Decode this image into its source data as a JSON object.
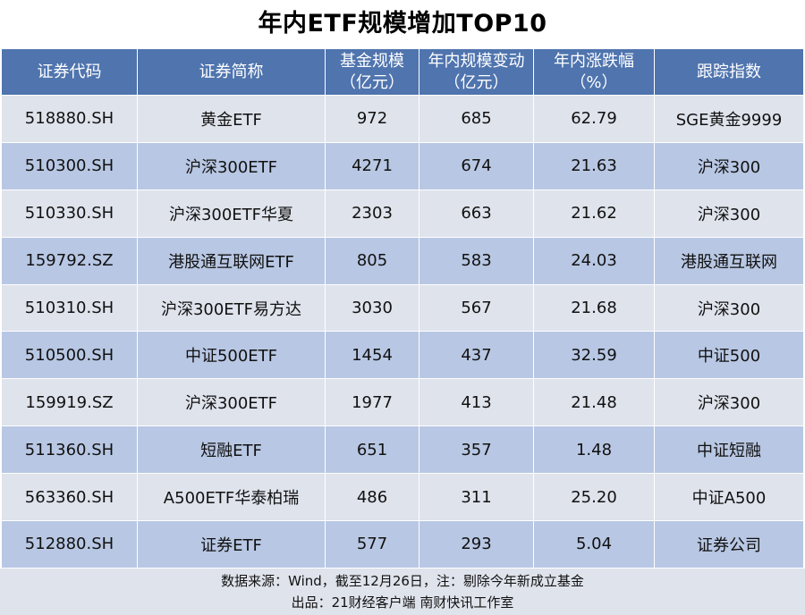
{
  "chart_data": {
    "type": "table",
    "title": "年内ETF规模增加TOP10",
    "columns": [
      {
        "line1": "证券代码",
        "line2": ""
      },
      {
        "line1": "证券简称",
        "line2": ""
      },
      {
        "line1": "基金规模",
        "line2": "（亿元）"
      },
      {
        "line1": "年内规模变动",
        "line2": "（亿元）"
      },
      {
        "line1": "年内涨跌幅",
        "line2": "（%）"
      },
      {
        "line1": "跟踪指数",
        "line2": ""
      }
    ],
    "rows": [
      [
        "518880.SH",
        "黄金ETF",
        "972",
        "685",
        "62.79",
        "SGE黄金9999"
      ],
      [
        "510300.SH",
        "沪深300ETF",
        "4271",
        "674",
        "21.63",
        "沪深300"
      ],
      [
        "510330.SH",
        "沪深300ETF华夏",
        "2303",
        "663",
        "21.62",
        "沪深300"
      ],
      [
        "159792.SZ",
        "港股通互联网ETF",
        "805",
        "583",
        "24.03",
        "港股通互联网"
      ],
      [
        "510310.SH",
        "沪深300ETF易方达",
        "3030",
        "567",
        "21.68",
        "沪深300"
      ],
      [
        "510500.SH",
        "中证500ETF",
        "1454",
        "437",
        "32.59",
        "中证500"
      ],
      [
        "159919.SZ",
        "沪深300ETF",
        "1977",
        "413",
        "21.48",
        "沪深300"
      ],
      [
        "511360.SH",
        "短融ETF",
        "651",
        "357",
        "1.48",
        "中证短融"
      ],
      [
        "563360.SH",
        "A500ETF华泰柏瑞",
        "486",
        "311",
        "25.20",
        "中证A500"
      ],
      [
        "512880.SH",
        "证券ETF",
        "577",
        "293",
        "5.04",
        "证券公司"
      ]
    ],
    "footer": {
      "source": "数据来源：Wind，截至12月26日，注：剔除今年新成立基金",
      "credit": "出品：21财经客户端  南财快讯工作室"
    }
  },
  "colors": {
    "header_bg": "#4f74ae",
    "row_light": "#dfe3ec",
    "row_dark": "#b8c7e3"
  }
}
